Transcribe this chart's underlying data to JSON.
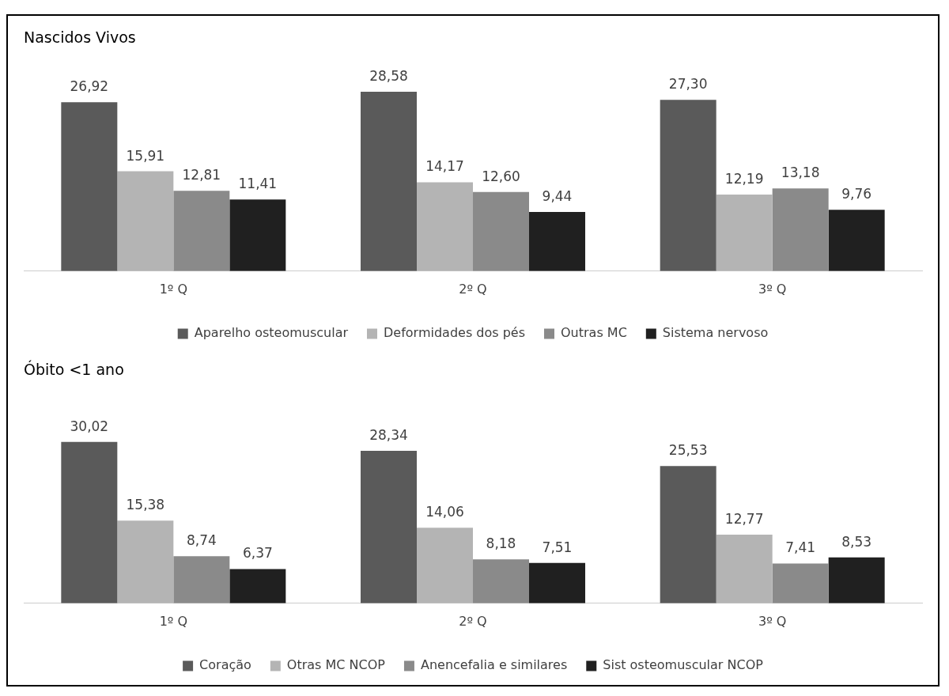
{
  "chart_data": [
    {
      "type": "bar",
      "title": "Nascidos Vivos",
      "categories": [
        "1º Q",
        "2º Q",
        "3º Q"
      ],
      "legend": "bottom",
      "grid": false,
      "series": [
        {
          "name": "Aparelho osteomuscular",
          "color": "#5a5a5a",
          "values": [
            26.92,
            28.58,
            27.3
          ],
          "value_labels": [
            "26,92",
            "28,58",
            "27,30"
          ]
        },
        {
          "name": "Deformidades dos pés",
          "color": "#b4b4b4",
          "values": [
            15.91,
            14.17,
            12.19
          ],
          "value_labels": [
            "15,91",
            "14,17",
            "12,19"
          ]
        },
        {
          "name": "Outras MC",
          "color": "#8a8a8a",
          "values": [
            12.81,
            12.6,
            13.18
          ],
          "value_labels": [
            "12,81",
            "12,60",
            "13,18"
          ]
        },
        {
          "name": "Sistema nervoso",
          "color": "#202020",
          "values": [
            11.41,
            9.44,
            9.76
          ],
          "value_labels": [
            "11,41",
            "9,44",
            "9,76"
          ]
        }
      ]
    },
    {
      "type": "bar",
      "title": "Óbito <1 ano",
      "categories": [
        "1º Q",
        "2º Q",
        "3º Q"
      ],
      "legend": "bottom",
      "grid": false,
      "series": [
        {
          "name": "Coração",
          "color": "#5a5a5a",
          "values": [
            30.02,
            28.34,
            25.53
          ],
          "value_labels": [
            "30,02",
            "28,34",
            "25,53"
          ]
        },
        {
          "name": "Otras MC NCOP",
          "color": "#b4b4b4",
          "values": [
            15.38,
            14.06,
            12.77
          ],
          "value_labels": [
            "15,38",
            "14,06",
            "12,77"
          ]
        },
        {
          "name": "Anencefalia e similares",
          "color": "#8a8a8a",
          "values": [
            8.74,
            8.18,
            7.41
          ],
          "value_labels": [
            "8,74",
            "8,18",
            "7,41"
          ]
        },
        {
          "name": "Sist osteomuscular NCOP",
          "color": "#202020",
          "values": [
            6.37,
            7.51,
            8.53
          ],
          "value_labels": [
            "6,37",
            "7,51",
            "8,53"
          ]
        }
      ]
    }
  ]
}
